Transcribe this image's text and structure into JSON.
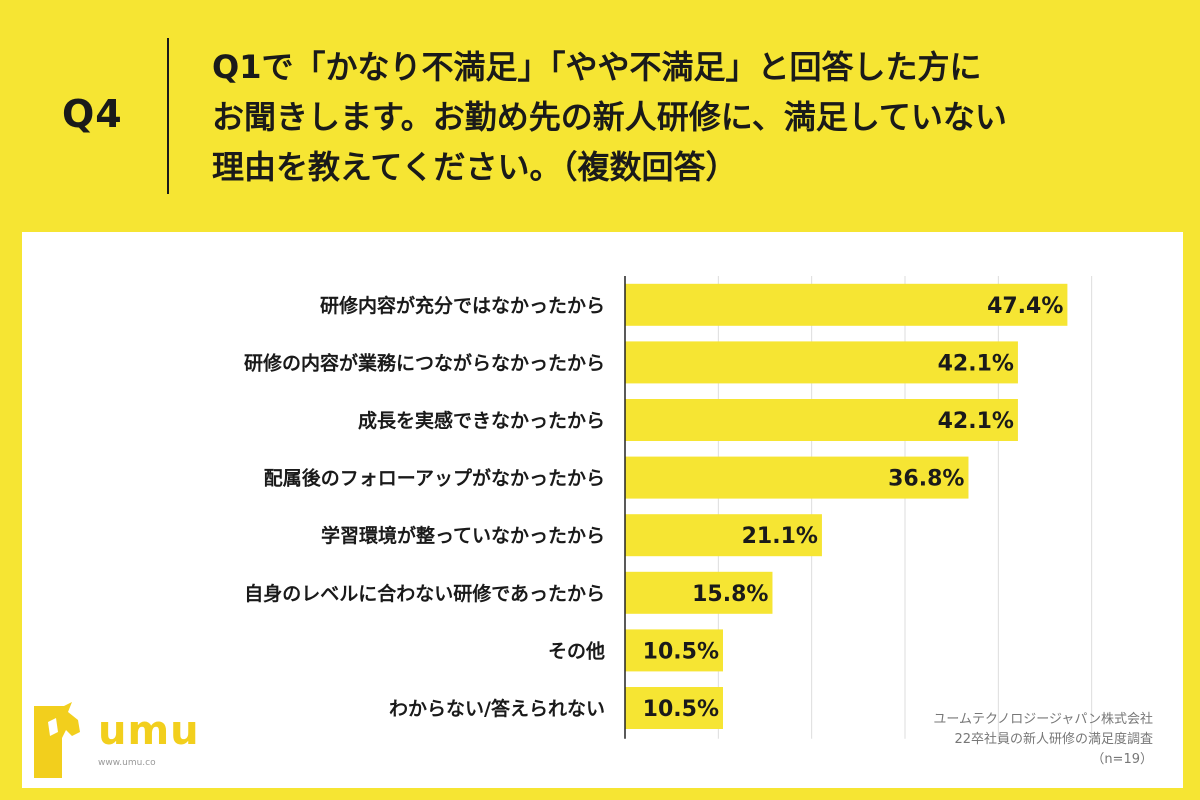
{
  "header": {
    "q_number": "Q4",
    "question_lines": [
      "Q1で「かなり不満足」「やや不満足」と回答した方に",
      "お聞きします。お勤め先の新人研修に、満足していない",
      "理由を教えてください。（複数回答）"
    ]
  },
  "colors": {
    "background": "#f6e533",
    "bar": "#f6e533",
    "card": "#ffffff",
    "logo": "#f2cf1d"
  },
  "chart_data": {
    "type": "bar",
    "orientation": "horizontal",
    "categories": [
      "研修内容が充分ではなかったから",
      "研修の内容が業務につながらなかったから",
      "成長を実感できなかったから",
      "配属後のフォローアップがなかったから",
      "学習環境が整っていなかったから",
      "自身のレベルに合わない研修であったから",
      "その他",
      "わからない/答えられない"
    ],
    "values": [
      47.4,
      42.1,
      42.1,
      36.8,
      21.1,
      15.8,
      10.5,
      10.5
    ],
    "value_labels": [
      "47.4%",
      "42.1%",
      "42.1%",
      "36.8%",
      "21.1%",
      "15.8%",
      "10.5%",
      "10.5%"
    ],
    "xlim": [
      0,
      60
    ],
    "grid": true
  },
  "footer": {
    "credit_lines": [
      "ユームテクノロジージャパン株式会社",
      "22卒社員の新人研修の満足度調査",
      "（n=19）"
    ],
    "logo_text": "umu",
    "logo_url": "www.umu.co"
  }
}
